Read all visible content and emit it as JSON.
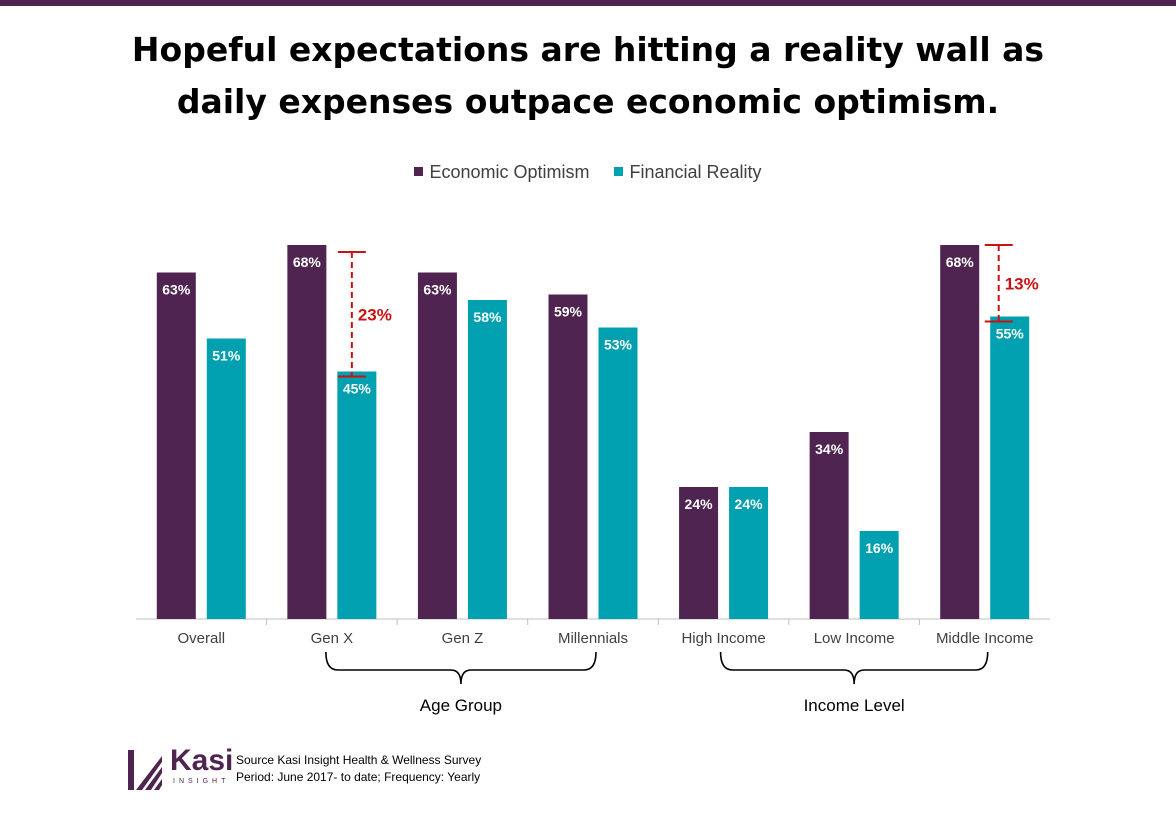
{
  "title_lines": [
    "Hopeful expectations are hitting a reality wall as",
    "daily expenses outpace economic optimism."
  ],
  "colors": {
    "optimism": "#4f2450",
    "reality": "#00a0b0",
    "gap": "#cc1111",
    "axis": "#bfbfbf",
    "text": "#404040"
  },
  "chart_data": {
    "type": "bar",
    "title": "Hopeful expectations are hitting a reality wall as daily expenses outpace economic optimism.",
    "categories": [
      "Overall",
      "Gen X",
      "Gen Z",
      "Millennials",
      "High Income",
      "Low Income",
      "Middle Income"
    ],
    "series": [
      {
        "name": "Economic Optimism",
        "values": [
          63,
          68,
          63,
          59,
          24,
          34,
          68
        ]
      },
      {
        "name": "Financial Reality",
        "values": [
          51,
          45,
          58,
          53,
          24,
          16,
          55
        ]
      }
    ],
    "value_format": "%",
    "ylim": [
      0,
      100
    ],
    "grid": false,
    "legend_position": "top-center",
    "groups": [
      {
        "label": "Age Group",
        "categories": [
          "Gen X",
          "Gen Z",
          "Millennials"
        ]
      },
      {
        "label": "Income Level",
        "categories": [
          "High Income",
          "Low Income",
          "Middle Income"
        ]
      }
    ],
    "annotations": [
      {
        "category": "Gen X",
        "label": "23%"
      },
      {
        "category": "Middle Income",
        "label": "13%"
      }
    ]
  },
  "footer": {
    "logo_text": "Kasi",
    "logo_sub": "INSIGHT",
    "source": "Source Kasi Insight Health & Wellness Survey",
    "period": "Period: June 2017- to date; Frequency: Yearly"
  }
}
